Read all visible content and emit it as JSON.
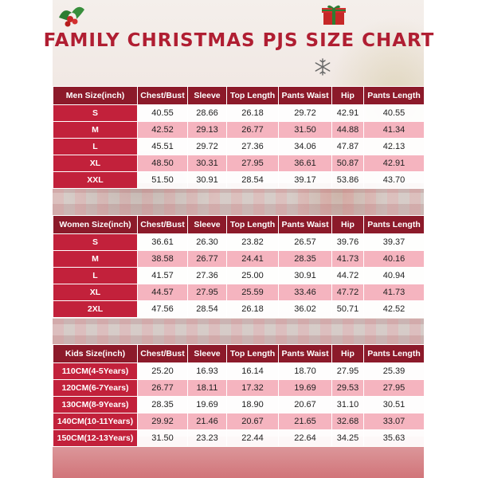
{
  "title": "FAMILY CHRISTMAS PJS SIZE CHART",
  "icons": [
    "holly-icon",
    "gift-icon",
    "snowflake-icon"
  ],
  "colors": {
    "header": "#8c1a2a",
    "label": "#c2213b",
    "stripe": "#f5b4bf",
    "title": "#b01e32"
  },
  "columns": [
    "Chest/Bust",
    "Sleeve",
    "Top Length",
    "Pants Waist",
    "Hip",
    "Pants Length"
  ],
  "men": {
    "header": "Men Size(inch)",
    "rows": [
      [
        "S",
        "40.55",
        "28.66",
        "26.18",
        "29.72",
        "42.91",
        "40.55"
      ],
      [
        "M",
        "42.52",
        "29.13",
        "26.77",
        "31.50",
        "44.88",
        "41.34"
      ],
      [
        "L",
        "45.51",
        "29.72",
        "27.36",
        "34.06",
        "47.87",
        "42.13"
      ],
      [
        "XL",
        "48.50",
        "30.31",
        "27.95",
        "36.61",
        "50.87",
        "42.91"
      ],
      [
        "XXL",
        "51.50",
        "30.91",
        "28.54",
        "39.17",
        "53.86",
        "43.70"
      ]
    ]
  },
  "women": {
    "header": "Women Size(inch)",
    "rows": [
      [
        "S",
        "36.61",
        "26.30",
        "23.82",
        "26.57",
        "39.76",
        "39.37"
      ],
      [
        "M",
        "38.58",
        "26.77",
        "24.41",
        "28.35",
        "41.73",
        "40.16"
      ],
      [
        "L",
        "41.57",
        "27.36",
        "25.00",
        "30.91",
        "44.72",
        "40.94"
      ],
      [
        "XL",
        "44.57",
        "27.95",
        "25.59",
        "33.46",
        "47.72",
        "41.73"
      ],
      [
        "2XL",
        "47.56",
        "28.54",
        "26.18",
        "36.02",
        "50.71",
        "42.52"
      ]
    ]
  },
  "kids": {
    "header": "Kids Size(inch)",
    "rows": [
      [
        "110CM(4-5Years)",
        "25.20",
        "16.93",
        "16.14",
        "18.70",
        "27.95",
        "25.39"
      ],
      [
        "120CM(6-7Years)",
        "26.77",
        "18.11",
        "17.32",
        "19.69",
        "29.53",
        "27.95"
      ],
      [
        "130CM(8-9Years)",
        "28.35",
        "19.69",
        "18.90",
        "20.67",
        "31.10",
        "30.51"
      ],
      [
        "140CM(10-11Years)",
        "29.92",
        "21.46",
        "20.67",
        "21.65",
        "32.68",
        "33.07"
      ],
      [
        "150CM(12-13Years)",
        "31.50",
        "23.23",
        "22.44",
        "22.64",
        "34.25",
        "35.63"
      ]
    ]
  }
}
